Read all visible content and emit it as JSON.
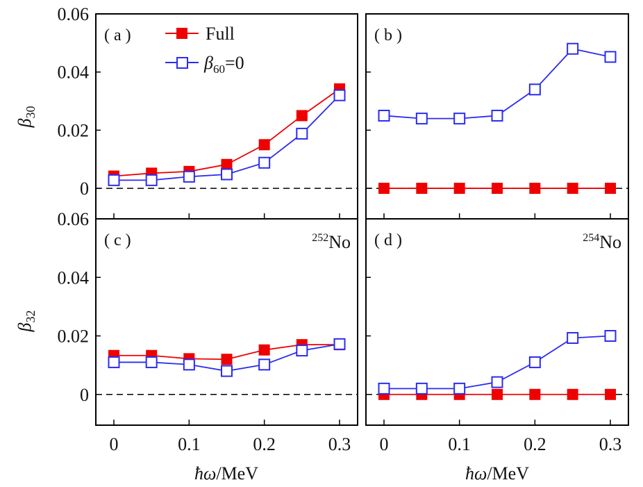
{
  "chart_data": [
    {
      "type": "line",
      "panel_label": "( a )",
      "annotation": "",
      "ylabel": "β30",
      "ylabel_base": "β",
      "ylabel_sub": "30",
      "xlabel": "ħω/MeV",
      "xlim": [
        -0.012,
        0.318
      ],
      "ylim": [
        -0.0105,
        0.06
      ],
      "yticks": [
        0,
        0.02,
        0.04,
        0.06
      ],
      "ytick_labels": [
        "0",
        "0.02",
        "0.04",
        "0.06"
      ],
      "xticks": [
        0,
        0.1,
        0.2,
        0.3
      ],
      "xtick_labels": [
        "0",
        "0.1",
        "0.2",
        "0.3"
      ],
      "reference_line": 0,
      "x": [
        0,
        0.05,
        0.1,
        0.15,
        0.2,
        0.25,
        0.3
      ],
      "series": [
        {
          "name": "Full",
          "marker": "filled-square",
          "color": "#ee0000",
          "values": [
            0.0042,
            0.0052,
            0.0058,
            0.0082,
            0.015,
            0.025,
            0.0342
          ]
        },
        {
          "name": "β60=0",
          "marker": "open-square",
          "color": "#2b2bf0",
          "values": [
            0.0028,
            0.0028,
            0.004,
            0.0048,
            0.0088,
            0.0188,
            0.032
          ]
        }
      ],
      "legend": {
        "placement": "top-center",
        "entries": [
          {
            "text": "Full"
          },
          {
            "text_base": "β",
            "text_sub": "60",
            "text_tail": "=0"
          }
        ]
      }
    },
    {
      "type": "line",
      "panel_label": "( b )",
      "annotation": "",
      "ylim": [
        -0.0105,
        0.06
      ],
      "xlim": [
        -0.012,
        0.318
      ],
      "yticks": [
        0,
        0.02,
        0.04,
        0.06
      ],
      "xticks": [
        0,
        0.1,
        0.2,
        0.3
      ],
      "xtick_labels": [
        "0",
        "0.1",
        "0.2",
        "0.3"
      ],
      "xlabel": "ħω/MeV",
      "reference_line": 0,
      "x": [
        0,
        0.05,
        0.1,
        0.15,
        0.2,
        0.25,
        0.3
      ],
      "series": [
        {
          "name": "Full",
          "marker": "filled-square",
          "color": "#ee0000",
          "values": [
            0,
            0,
            0,
            0,
            0,
            0,
            0
          ]
        },
        {
          "name": "β60=0",
          "marker": "open-square",
          "color": "#2b2bf0",
          "values": [
            0.025,
            0.024,
            0.024,
            0.025,
            0.034,
            0.048,
            0.0452
          ]
        }
      ]
    },
    {
      "type": "line",
      "panel_label": "( c )",
      "annotation_sup": "252",
      "annotation_base": "No",
      "ylabel": "β32",
      "ylabel_base": "β",
      "ylabel_sub": "32",
      "xlabel": "ħω/MeV",
      "xlim": [
        -0.012,
        0.318
      ],
      "ylim": [
        -0.0105,
        0.06
      ],
      "yticks": [
        0,
        0.02,
        0.04,
        0.06
      ],
      "ytick_labels": [
        "0",
        "0.02",
        "0.04",
        "0.06"
      ],
      "xticks": [
        0,
        0.1,
        0.2,
        0.3
      ],
      "xtick_labels": [
        "0",
        "0.1",
        "0.2",
        "0.3"
      ],
      "reference_line": 0,
      "x": [
        0,
        0.05,
        0.1,
        0.15,
        0.2,
        0.25,
        0.3
      ],
      "series": [
        {
          "name": "Full",
          "marker": "filled-square",
          "color": "#ee0000",
          "values": [
            0.0133,
            0.0133,
            0.0122,
            0.012,
            0.0152,
            0.017,
            0.017
          ]
        },
        {
          "name": "β60=0",
          "marker": "open-square",
          "color": "#2b2bf0",
          "values": [
            0.011,
            0.011,
            0.0102,
            0.008,
            0.0102,
            0.015,
            0.0172
          ]
        }
      ]
    },
    {
      "type": "line",
      "panel_label": "( d )",
      "annotation_sup": "254",
      "annotation_base": "No",
      "xlabel": "ħω/MeV",
      "xlim": [
        -0.012,
        0.318
      ],
      "ylim": [
        -0.0105,
        0.06
      ],
      "yticks": [
        0,
        0.02,
        0.04,
        0.06
      ],
      "xticks": [
        0,
        0.1,
        0.2,
        0.3
      ],
      "xtick_labels": [
        "0",
        "0.1",
        "0.2",
        "0.3"
      ],
      "reference_line": 0,
      "x": [
        0,
        0.05,
        0.1,
        0.15,
        0.2,
        0.25,
        0.3
      ],
      "series": [
        {
          "name": "Full",
          "marker": "filled-square",
          "color": "#ee0000",
          "values": [
            0,
            0,
            0,
            0,
            0,
            0,
            0
          ]
        },
        {
          "name": "β60=0",
          "marker": "open-square",
          "color": "#2b2bf0",
          "values": [
            0.002,
            0.002,
            0.002,
            0.0042,
            0.011,
            0.0193,
            0.02
          ]
        }
      ]
    }
  ],
  "xlabel_parts": {
    "hbar": "ħ",
    "omega": "ω",
    "unit": "/MeV"
  }
}
